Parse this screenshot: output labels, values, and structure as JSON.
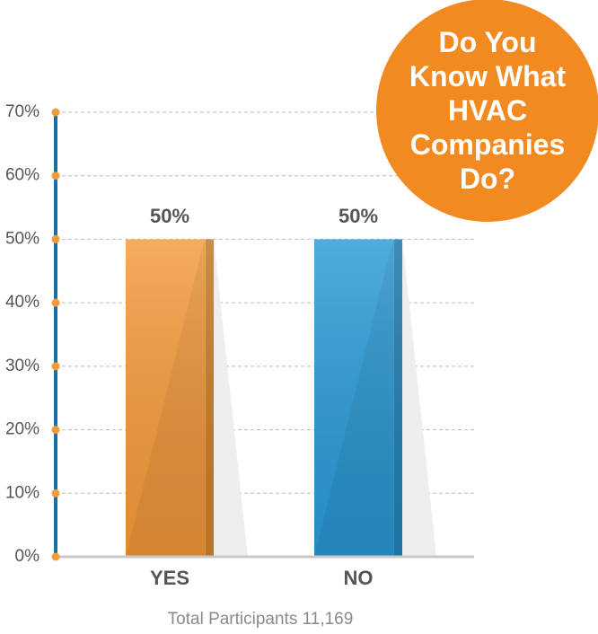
{
  "chart_data": {
    "type": "bar",
    "title": "Do You Know What HVAC Companies Do?",
    "categories": [
      "YES",
      "NO"
    ],
    "values": [
      50,
      50
    ],
    "value_labels": [
      "50%",
      "50%"
    ],
    "colors": [
      "#f39a3a",
      "#2a9ad6"
    ],
    "ylim": [
      0,
      70
    ],
    "yticks": [
      {
        "value": 0,
        "label": "0%"
      },
      {
        "value": 10,
        "label": "10%"
      },
      {
        "value": 20,
        "label": "20%"
      },
      {
        "value": 30,
        "label": "30%"
      },
      {
        "value": 40,
        "label": "40%"
      },
      {
        "value": 50,
        "label": "50%"
      },
      {
        "value": 60,
        "label": "60%"
      },
      {
        "value": 70,
        "label": "70%"
      }
    ],
    "grid": true,
    "caption": "Total Participants 11,169"
  }
}
